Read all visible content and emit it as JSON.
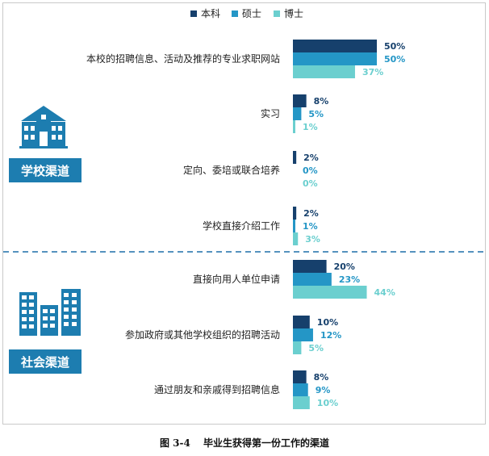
{
  "chart_data": {
    "type": "bar",
    "orientation": "horizontal",
    "legend_position": "top",
    "series": [
      {
        "name": "本科",
        "color": "#16406c",
        "values": [
          50,
          8,
          2,
          2,
          20,
          10,
          8
        ]
      },
      {
        "name": "硕士",
        "color": "#2496c6",
        "values": [
          50,
          5,
          0,
          1,
          23,
          12,
          9
        ]
      },
      {
        "name": "博士",
        "color": "#6bcfcf",
        "values": [
          37,
          1,
          0,
          3,
          44,
          5,
          10
        ]
      }
    ],
    "categories": [
      "本校的招聘信息、活动及推荐的专业求职网站",
      "实习",
      "定向、委培或联合培养",
      "学校直接介绍工作",
      "直接向用人单位申请",
      "参加政府或其他学校组织的招聘活动",
      "通过朋友和亲戚得到招聘信息"
    ],
    "groups": [
      {
        "label": "学校渠道",
        "icon": "school-building-icon"
      },
      {
        "label": "社会渠道",
        "icon": "city-buildings-icon"
      }
    ],
    "value_suffix": "%"
  },
  "caption": {
    "figure_no": "图 3-4",
    "title": "毕业生获得第一份工作的渠道"
  },
  "colors": {
    "group_box": "#1d7db0",
    "divider": "#1d6ea8",
    "icon": "#1d7db0"
  }
}
